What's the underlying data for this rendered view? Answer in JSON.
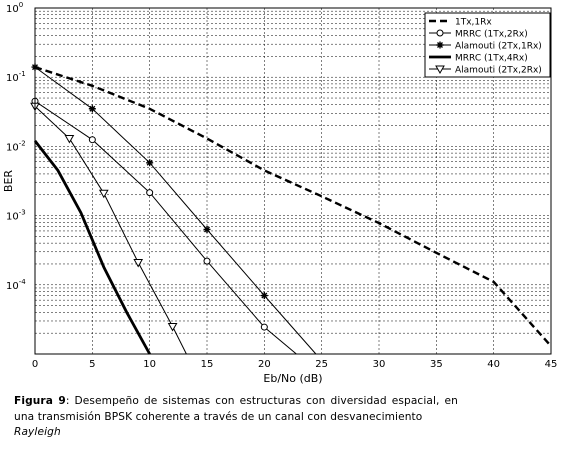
{
  "chart_data": {
    "type": "line",
    "xlabel": "Eb/No (dB)",
    "ylabel": "BER",
    "xlim": [
      0,
      45
    ],
    "ylim": [
      1e-05,
      1
    ],
    "yscale": "log",
    "xticks": [
      "0",
      "5",
      "10",
      "15",
      "20",
      "25",
      "30",
      "35",
      "40",
      "45"
    ],
    "yticks": [
      {
        "base": "10",
        "exp": "0"
      },
      {
        "base": "10",
        "exp": "-1"
      },
      {
        "base": "10",
        "exp": "-2"
      },
      {
        "base": "10",
        "exp": "-3"
      },
      {
        "base": "10",
        "exp": "-4"
      }
    ],
    "grid": true,
    "legend_position": "top-right",
    "series": [
      {
        "name": "1Tx,1Rx",
        "style": "dashed-thick",
        "marker": "none",
        "points": [
          [
            0,
            0.14
          ],
          [
            5,
            0.075
          ],
          [
            10,
            0.035
          ],
          [
            15,
            0.013
          ],
          [
            20,
            0.0045
          ],
          [
            25,
            0.0019
          ],
          [
            30,
            0.00078
          ],
          [
            35,
            0.00029
          ],
          [
            40,
            0.00011
          ],
          [
            45,
            1.3e-05
          ]
        ]
      },
      {
        "name": "MRRC (1Tx,2Rx)",
        "style": "solid",
        "marker": "circle",
        "points": [
          [
            0,
            0.045
          ],
          [
            5,
            0.0125
          ],
          [
            10,
            0.00215
          ],
          [
            15,
            0.00022
          ],
          [
            20,
            2.45e-05
          ],
          [
            22.8,
            1e-05
          ]
        ]
      },
      {
        "name": "Alamouti (2Tx,1Rx)",
        "style": "solid",
        "marker": "star",
        "points": [
          [
            0,
            0.14
          ],
          [
            5,
            0.035
          ],
          [
            10,
            0.0058
          ],
          [
            15,
            0.00063
          ],
          [
            20,
            7e-05
          ],
          [
            24.5,
            1e-05
          ]
        ]
      },
      {
        "name": "MRRC (1Tx,4Rx)",
        "style": "solid-thick",
        "marker": "none",
        "points": [
          [
            0,
            0.012
          ],
          [
            2,
            0.0045
          ],
          [
            4,
            0.0011
          ],
          [
            6,
            0.00018
          ],
          [
            8,
            4e-05
          ],
          [
            10,
            1e-05
          ]
        ]
      },
      {
        "name": "Alamouti (2Tx,2Rx)",
        "style": "solid",
        "marker": "triangle",
        "points": [
          [
            0,
            0.038
          ],
          [
            3,
            0.013
          ],
          [
            6,
            0.0021
          ],
          [
            9,
            0.00021
          ],
          [
            12,
            2.5e-05
          ],
          [
            13.2,
            1e-05
          ]
        ]
      }
    ]
  },
  "caption": {
    "label": "Figura 9",
    "text": ": Desempeño de sistemas con estructuras con diversidad espacial, en una transmisión BPSK coherente a través de un canal con desvanecimiento",
    "italic": "Rayleigh"
  }
}
